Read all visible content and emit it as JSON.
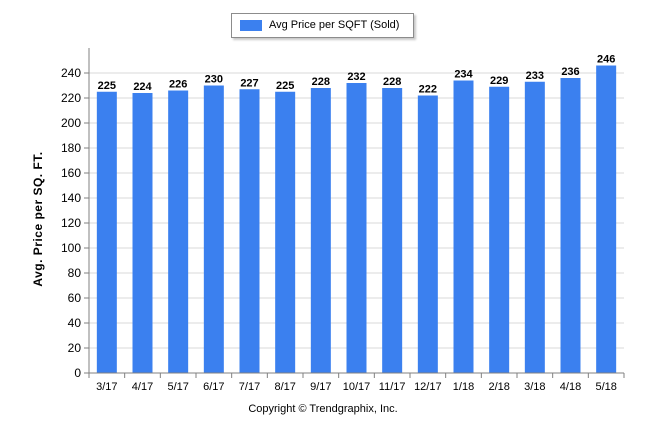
{
  "chart_data": {
    "type": "bar",
    "categories": [
      "3/17",
      "4/17",
      "5/17",
      "6/17",
      "7/17",
      "8/17",
      "9/17",
      "10/17",
      "11/17",
      "12/17",
      "1/18",
      "2/18",
      "3/18",
      "4/18",
      "5/18"
    ],
    "series": [
      {
        "name": "Avg Price per SQFT (Sold)",
        "values": [
          225,
          224,
          226,
          230,
          227,
          225,
          228,
          232,
          228,
          222,
          234,
          229,
          233,
          236,
          246
        ]
      }
    ],
    "ylabel": "Avg. Price per SQ. FT.",
    "xlabel": "",
    "ylim": [
      0,
      260
    ],
    "yticks": [
      0,
      20,
      40,
      60,
      80,
      100,
      120,
      140,
      160,
      180,
      200,
      220,
      240
    ],
    "grid": true,
    "legend": "top-center",
    "bar_color": "#3b80ef",
    "data_labels": true
  },
  "footer": {
    "copyright": "Copyright © Trendgraphix, Inc."
  }
}
